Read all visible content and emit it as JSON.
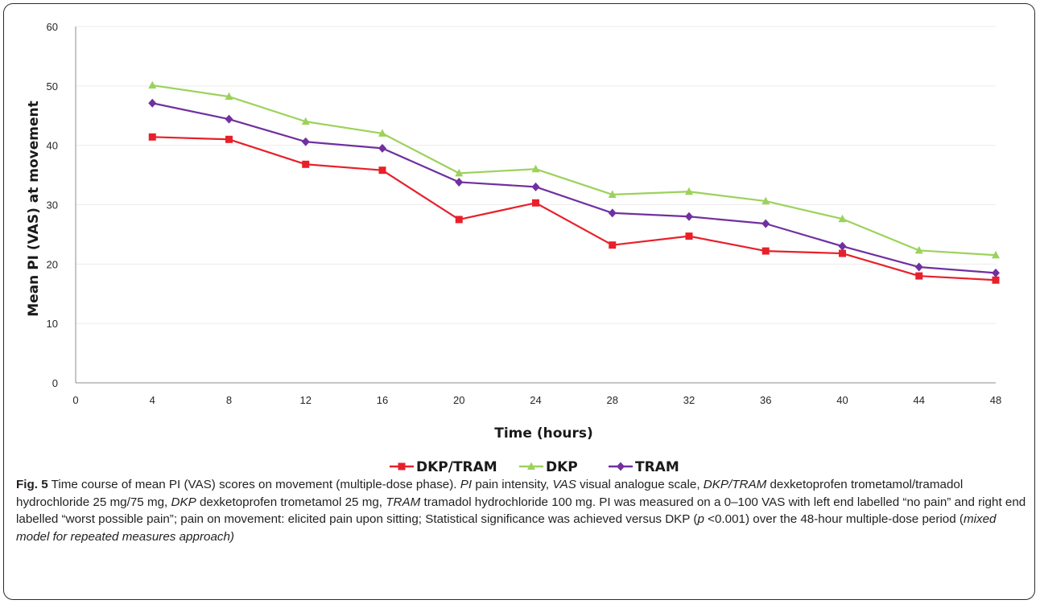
{
  "chart_data": {
    "type": "line",
    "title": "",
    "xlabel": "Time (hours)",
    "ylabel": "Mean PI (VAS) at movement",
    "xlim": [
      0,
      48
    ],
    "ylim": [
      0,
      60
    ],
    "x_ticks": [
      0,
      4,
      8,
      12,
      16,
      20,
      24,
      28,
      32,
      36,
      40,
      44,
      48
    ],
    "y_ticks": [
      0,
      10,
      20,
      30,
      40,
      50,
      60
    ],
    "x": [
      4,
      8,
      12,
      16,
      20,
      24,
      28,
      32,
      36,
      40,
      44,
      48
    ],
    "grid": "horizontal",
    "legend_position": "bottom",
    "series": [
      {
        "name": "DKP/TRAM",
        "marker": "square",
        "color": "#e8202a",
        "values": [
          41.4,
          41.0,
          36.8,
          35.8,
          27.5,
          30.3,
          23.2,
          24.7,
          22.2,
          21.8,
          18.0,
          17.3
        ]
      },
      {
        "name": "DKP",
        "marker": "triangle",
        "color": "#9bd25a",
        "values": [
          50.1,
          48.2,
          44.0,
          42.0,
          35.3,
          36.0,
          31.7,
          32.2,
          30.6,
          27.6,
          22.3,
          21.5
        ]
      },
      {
        "name": "TRAM",
        "marker": "diamond",
        "color": "#7030a0",
        "values": [
          47.1,
          44.4,
          40.6,
          39.5,
          33.8,
          33.0,
          28.6,
          28.0,
          26.8,
          23.0,
          19.5,
          18.5
        ]
      }
    ]
  },
  "caption": {
    "label": "Fig. 5",
    "segments": [
      {
        "text": " Time course of mean PI (VAS) scores on movement (multiple-dose phase). "
      },
      {
        "text": "PI",
        "italic": true
      },
      {
        "text": " pain intensity, "
      },
      {
        "text": "VAS",
        "italic": true
      },
      {
        "text": " visual analogue scale, "
      },
      {
        "text": "DKP/TRAM",
        "italic": true
      },
      {
        "text": " dexketoprofen trometamol/tramadol hydrochloride 25 mg/75 mg, "
      },
      {
        "text": "DKP",
        "italic": true
      },
      {
        "text": " dexketoprofen trometamol 25 mg, "
      },
      {
        "text": "TRAM",
        "italic": true
      },
      {
        "text": " tramadol hydrochloride 100 mg. PI was measured on a 0–100 VAS with left end labelled “no pain” and right end labelled “worst possible pain”; pain on movement: elicited pain upon sitting; Statistical significance was achieved versus DKP ("
      },
      {
        "text": "p",
        "italic": true
      },
      {
        "text": " <0.001) over the 48-hour multiple-dose period ("
      },
      {
        "text": "mixed model for repeated measures approach)",
        "italic": true
      }
    ]
  }
}
